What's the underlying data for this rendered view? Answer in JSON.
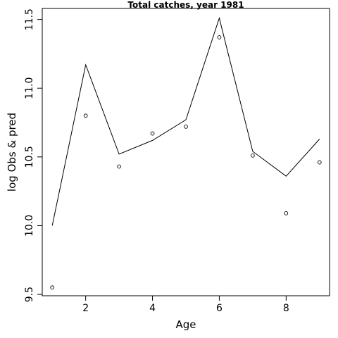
{
  "chart_data": {
    "type": "line",
    "title": "Total catches, year 1981",
    "xlabel": "Age",
    "ylabel": "log Obs & pred",
    "xlim": [
      0.7,
      9.3
    ],
    "ylim": [
      9.49,
      11.58
    ],
    "xticks": [
      2,
      4,
      6,
      8
    ],
    "yticks": [
      9.5,
      10.0,
      10.5,
      11.0,
      11.5
    ],
    "xtick_labels": [
      "2",
      "4",
      "6",
      "8"
    ],
    "ytick_labels": [
      "9.5",
      "10.0",
      "10.5",
      "11.0",
      "11.5"
    ],
    "grid": false,
    "legend": "none",
    "color": "#000000",
    "series": [
      {
        "kind": "line",
        "x": [
          1,
          2,
          3,
          4,
          5,
          6,
          7,
          8,
          9
        ],
        "y": [
          10.0,
          11.17,
          10.52,
          10.62,
          10.77,
          11.51,
          10.54,
          10.36,
          10.63
        ]
      },
      {
        "kind": "points",
        "x": [
          1,
          2,
          3,
          4,
          5,
          6,
          7,
          8,
          9
        ],
        "y": [
          9.55,
          10.8,
          10.43,
          10.67,
          10.72,
          11.37,
          10.51,
          10.09,
          10.46
        ]
      }
    ]
  }
}
